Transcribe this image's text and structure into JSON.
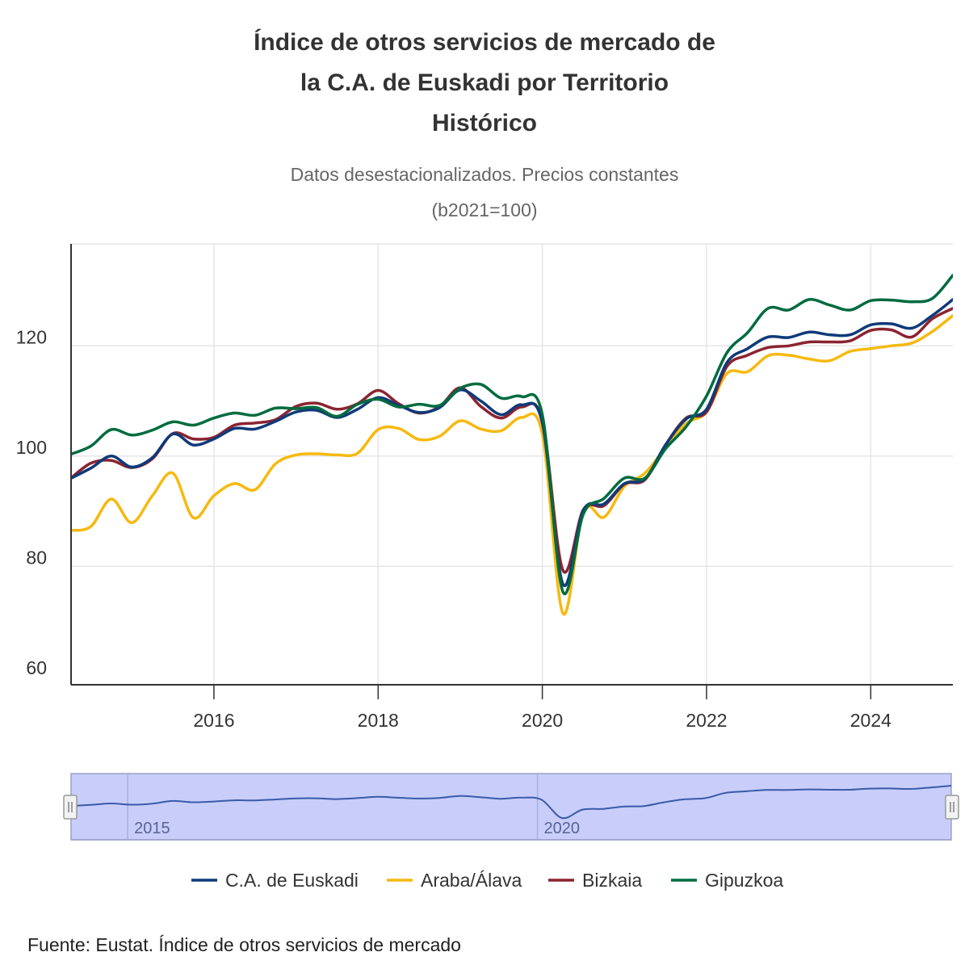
{
  "title_lines": [
    "Índice de otros servicios de mercado de",
    "la C.A. de Euskadi por Territorio",
    "Histórico"
  ],
  "subtitle_lines": [
    "Datos desestacionalizados. Precios constantes",
    "(b2021=100)"
  ],
  "source": "Fuente: Eustat. Índice de otros servicios de mercado",
  "chart_data": {
    "type": "line",
    "title": "Índice de otros servicios de mercado de la C.A. de Euskadi por Territorio Histórico",
    "subtitle": "Datos desestacionalizados. Precios constantes (b2021=100)",
    "xlim": [
      2014.26,
      2025.0
    ],
    "ylim": [
      58.5,
      138.5
    ],
    "x_ticks": [
      2016,
      2018,
      2020,
      2022,
      2024
    ],
    "x_tick_labels": [
      "2016",
      "2018",
      "2020",
      "2022",
      "2024"
    ],
    "y_ticks": [
      60,
      80,
      100,
      120
    ],
    "y_tick_labels": [
      "60",
      "80",
      "100",
      "120"
    ],
    "grid": true,
    "legend_position": "bottom",
    "x": [
      2014.25,
      2014.5,
      2014.75,
      2015.0,
      2015.25,
      2015.5,
      2015.75,
      2016.0,
      2016.25,
      2016.5,
      2016.75,
      2017.0,
      2017.25,
      2017.5,
      2017.75,
      2018.0,
      2018.25,
      2018.5,
      2018.75,
      2019.0,
      2019.25,
      2019.5,
      2019.75,
      2020.0,
      2020.25,
      2020.5,
      2020.75,
      2021.0,
      2021.25,
      2021.5,
      2021.75,
      2022.0,
      2022.25,
      2022.5,
      2022.75,
      2023.0,
      2023.25,
      2023.5,
      2023.75,
      2024.0,
      2024.25,
      2024.5,
      2024.75,
      2025.0
    ],
    "series": [
      {
        "name": "C.A. de Euskadi",
        "color": "#0f3a7a",
        "values": [
          95.9,
          97.8,
          100.0,
          98.0,
          99.7,
          104.0,
          102.0,
          103.1,
          105.0,
          104.9,
          106.3,
          108.0,
          108.3,
          107.0,
          108.5,
          110.6,
          109.2,
          107.9,
          108.8,
          112.0,
          110.0,
          107.5,
          109.3,
          106.0,
          76.8,
          90.2,
          91.3,
          95.0,
          95.9,
          102.0,
          106.7,
          108.5,
          117.0,
          119.5,
          121.6,
          121.5,
          122.5,
          122.0,
          122.0,
          123.8,
          124.0,
          123.2,
          125.5,
          128.4
        ]
      },
      {
        "name": "Araba/Álava",
        "color": "#f7b90f",
        "values": [
          86.5,
          87.2,
          92.2,
          87.9,
          92.8,
          96.9,
          88.8,
          92.8,
          95.0,
          93.9,
          98.6,
          100.2,
          100.4,
          100.2,
          100.5,
          104.8,
          105.0,
          103.0,
          103.6,
          106.4,
          104.9,
          104.6,
          107.0,
          104.0,
          71.5,
          90.0,
          88.9,
          94.5,
          96.9,
          101.5,
          105.9,
          108.0,
          115.0,
          115.3,
          118.2,
          118.3,
          117.6,
          117.3,
          119.0,
          119.5,
          120.0,
          120.5,
          122.6,
          125.5
        ]
      },
      {
        "name": "Bizkaia",
        "color": "#8b2330",
        "values": [
          95.9,
          98.7,
          99.2,
          97.9,
          99.5,
          104.1,
          103.1,
          103.4,
          105.6,
          106.0,
          106.6,
          109.0,
          109.6,
          108.5,
          109.5,
          111.9,
          109.5,
          107.8,
          109.0,
          112.4,
          109.0,
          106.9,
          108.9,
          106.5,
          79.3,
          90.3,
          91.0,
          94.9,
          95.7,
          102.0,
          106.9,
          108.0,
          116.3,
          118.3,
          119.7,
          120.0,
          120.7,
          120.7,
          120.9,
          122.8,
          122.9,
          121.6,
          124.9,
          126.8
        ]
      },
      {
        "name": "Gipuzkoa",
        "color": "#006b3f",
        "values": [
          100.3,
          101.8,
          104.8,
          103.8,
          104.7,
          106.2,
          105.6,
          106.9,
          107.8,
          107.4,
          108.7,
          108.6,
          108.8,
          107.2,
          109.4,
          110.3,
          108.9,
          109.4,
          109.2,
          112.3,
          113.0,
          110.5,
          110.8,
          107.5,
          75.4,
          89.5,
          92.3,
          96.0,
          96.0,
          101.3,
          105.3,
          110.9,
          118.8,
          122.4,
          126.8,
          126.5,
          128.4,
          127.4,
          126.5,
          128.2,
          128.3,
          128.0,
          128.6,
          132.8
        ]
      }
    ],
    "navigator": {
      "x_tick_labels": [
        "2015",
        "2020"
      ],
      "x_ticks": [
        2015,
        2020
      ],
      "range": [
        2014.26,
        2025.0
      ]
    }
  }
}
